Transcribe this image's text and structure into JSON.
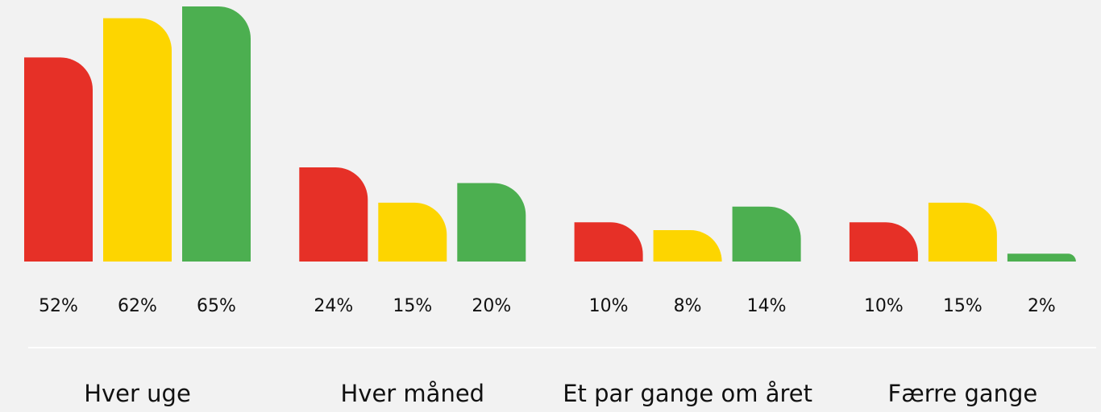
{
  "chart_data": {
    "type": "bar",
    "categories": [
      "Hver uge",
      "Hver måned",
      "Et par gange om året",
      "Færre gange"
    ],
    "series": [
      {
        "color": "#e63027",
        "values": [
          52,
          24,
          10,
          10
        ],
        "value_labels": [
          "52%",
          "24%",
          "10%",
          "10%"
        ]
      },
      {
        "color": "#fdd500",
        "values": [
          62,
          15,
          8,
          15
        ],
        "value_labels": [
          "62%",
          "15%",
          "8%",
          "15%"
        ]
      },
      {
        "color": "#4caf50",
        "values": [
          65,
          20,
          14,
          2
        ],
        "value_labels": [
          "65%",
          "20%",
          "14%",
          "2%"
        ]
      }
    ]
  }
}
